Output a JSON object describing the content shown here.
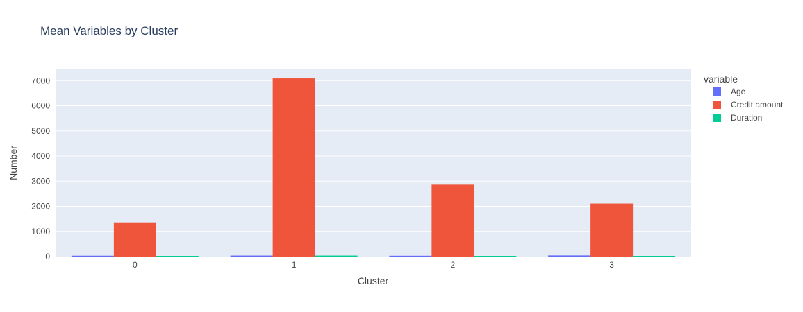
{
  "chart_data": {
    "type": "bar",
    "title": "Mean Variables by Cluster",
    "xlabel": "Cluster",
    "ylabel": "Number",
    "categories": [
      "0",
      "1",
      "2",
      "3"
    ],
    "series": [
      {
        "name": "Age",
        "values": [
          35,
          40,
          33,
          45
        ],
        "color": "#636efa"
      },
      {
        "name": "Credit amount",
        "values": [
          1360,
          7090,
          2860,
          2110
        ],
        "color": "#ef553b"
      },
      {
        "name": "Duration",
        "values": [
          14,
          40,
          21,
          11
        ],
        "color": "#00cc96"
      }
    ],
    "ylim": [
      0,
      7450
    ],
    "yticks": [
      0,
      1000,
      2000,
      3000,
      4000,
      5000,
      6000,
      7000
    ],
    "ytick_labels": [
      "0",
      "1000",
      "2000",
      "3000",
      "4000",
      "5000",
      "6000",
      "7000"
    ],
    "legend_title": "variable",
    "legend_position": "right",
    "grid": true,
    "colors": {
      "plot_background": "#e5ecf6",
      "grid": "#ffffff",
      "text": "#444444",
      "title": "#2a3f5f"
    }
  }
}
